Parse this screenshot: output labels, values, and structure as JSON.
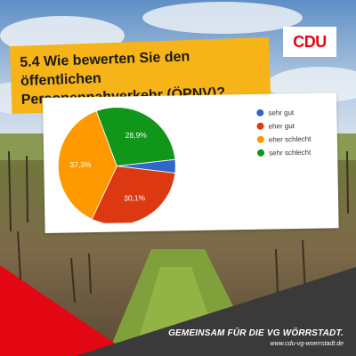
{
  "brand": {
    "logo_text": "CDU"
  },
  "question": {
    "line1": "5.4 Wie bewerten Sie den öffentlichen",
    "line2": "Personennahverkehr (ÖPNV)?"
  },
  "chart_data": {
    "type": "pie",
    "categories": [
      "sehr gut",
      "eher gut",
      "eher schlecht",
      "sehr schlecht"
    ],
    "values": [
      3.7,
      30.1,
      37.3,
      28.9
    ],
    "labels_shown": [
      "",
      "30,1%",
      "37,3%",
      "28,9%"
    ],
    "colors": [
      "#3366cc",
      "#dc3912",
      "#ff9900",
      "#109618"
    ],
    "legend_position": "right"
  },
  "footer": {
    "slogan": "GEMEINSAM FÜR DIE VG WÖRRSTADT.",
    "url": "www.cdu-vg-woerrstadt.de"
  }
}
